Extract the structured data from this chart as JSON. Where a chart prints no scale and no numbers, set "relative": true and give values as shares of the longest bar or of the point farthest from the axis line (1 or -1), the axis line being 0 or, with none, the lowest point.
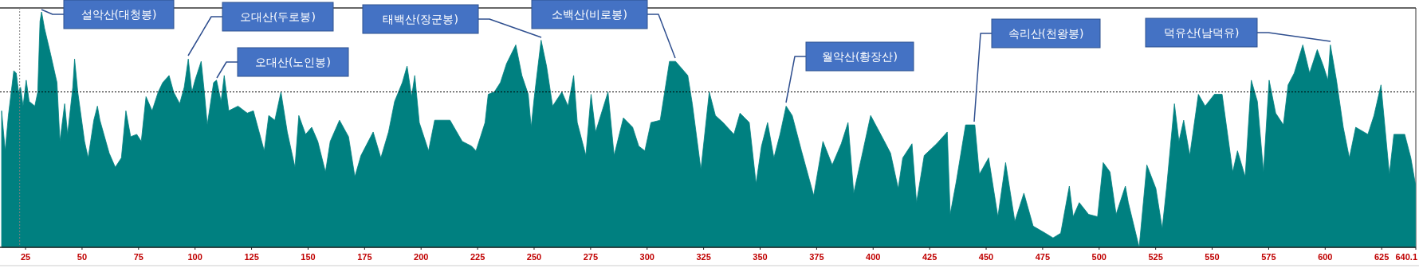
{
  "chart_data": {
    "type": "area",
    "relative": true,
    "x": [
      14.4,
      16.0,
      17.4,
      19.8,
      20.9,
      21.9,
      22.8,
      23.9,
      25.3,
      26.6,
      29.1,
      30.4,
      31.4,
      32.1,
      33.4,
      36.1,
      38.9,
      40.2,
      42.3,
      43.6,
      45.9,
      46.7,
      48.1,
      51.1,
      52.7,
      55.2,
      56.8,
      57.9,
      62.0,
      64.7,
      67.4,
      69.4,
      71.5,
      74.2,
      76.2,
      78.3,
      81.0,
      83.7,
      85.7,
      88.5,
      90.5,
      93.2,
      95.2,
      97.0,
      98.6,
      100.0,
      102.7,
      104.1,
      105.4,
      108.2,
      109.5,
      111.5,
      112.9,
      114.9,
      119.0,
      123.1,
      125.8,
      130.6,
      132.6,
      135.3,
      138.0,
      140.8,
      144.2,
      145.9,
      148.9,
      151.6,
      154.3,
      157.7,
      159.8,
      163.9,
      167.9,
      170.7,
      173.4,
      178.8,
      182.2,
      185.6,
      188.3,
      191.7,
      193.8,
      195.8,
      197.2,
      199.2,
      203.3,
      206.0,
      212.8,
      218.2,
      222.3,
      224.3,
      228.3,
      229.7,
      232.4,
      235.1,
      237.8,
      241.9,
      244.6,
      247.4,
      248.7,
      250.1,
      253.1,
      255.5,
      258.2,
      262.3,
      265.0,
      267.5,
      269.1,
      272.9,
      275.2,
      277.2,
      282.7,
      285.4,
      289.5,
      293.6,
      296.3,
      299.0,
      301.7,
      305.8,
      309.9,
      312.6,
      318.0,
      320.0,
      323.8,
      327.5,
      330.2,
      333.6,
      338.4,
      341.1,
      345.2,
      348.2,
      350.6,
      353.3,
      356.1,
      358.8,
      361.5,
      364.2,
      368.3,
      373.7,
      377.8,
      381.9,
      385.9,
      388.9,
      391.4,
      395.5,
      398.9,
      405.0,
      407.7,
      411.1,
      413.1,
      417.2,
      419.2,
      422.6,
      428.1,
      432.8,
      434.1,
      436.8,
      440.9,
      445.0,
      447.0,
      451.1,
      455.2,
      458.6,
      462.7,
      466.7,
      470.8,
      476.2,
      479.6,
      483.0,
      486.8,
      488.5,
      491.2,
      495.3,
      499.3,
      501.8,
      504.8,
      507.5,
      511.6,
      512.9,
      517.7,
      521.1,
      525.1,
      527.9,
      529.9,
      533.3,
      535.3,
      537.4,
      540.1,
      543.9,
      546.9,
      551.0,
      554.4,
      559.1,
      561.2,
      564.6,
      567.3,
      570.0,
      572.7,
      575.2,
      578.1,
      581.5,
      583.6,
      586.3,
      590.1,
      593.1,
      596.5,
      599.2,
      601.2,
      602.3,
      605.0,
      608.0,
      610.7,
      613.5,
      618.9,
      621.6,
      624.7,
      628.4,
      630.4,
      635.2,
      637.9,
      639.9
    ],
    "series": [
      {
        "color": "#008080",
        "values": [
          0.58,
          0.41,
          0.56,
          0.75,
          0.74,
          0.66,
          0.68,
          0.6,
          0.71,
          0.62,
          0.6,
          0.66,
          0.96,
          1,
          0.93,
          0.82,
          0.7,
          0.45,
          0.61,
          0.48,
          0.68,
          0.8,
          0.66,
          0.45,
          0.38,
          0.54,
          0.6,
          0.54,
          0.4,
          0.34,
          0.38,
          0.58,
          0.47,
          0.48,
          0.45,
          0.64,
          0.58,
          0.66,
          0.7,
          0.73,
          0.66,
          0.61,
          0.68,
          0.8,
          0.66,
          0.71,
          0.79,
          0.66,
          0.52,
          0.7,
          0.71,
          0.62,
          0.73,
          0.58,
          0.6,
          0.57,
          0.58,
          0.41,
          0.56,
          0.54,
          0.66,
          0.49,
          0.34,
          0.56,
          0.48,
          0.51,
          0.45,
          0.32,
          0.45,
          0.54,
          0.47,
          0.3,
          0.39,
          0.49,
          0.38,
          0.49,
          0.62,
          0.7,
          0.77,
          0.64,
          0.73,
          0.53,
          0.41,
          0.54,
          0.54,
          0.45,
          0.43,
          0.41,
          0.53,
          0.65,
          0.66,
          0.7,
          0.78,
          0.86,
          0.73,
          0.65,
          0.51,
          0.64,
          0.88,
          0.77,
          0.6,
          0.66,
          0.6,
          0.73,
          0.53,
          0.39,
          0.65,
          0.49,
          0.66,
          0.39,
          0.55,
          0.51,
          0.43,
          0.41,
          0.53,
          0.54,
          0.79,
          0.79,
          0.73,
          0.61,
          0.33,
          0.66,
          0.56,
          0.53,
          0.48,
          0.57,
          0.53,
          0.27,
          0.43,
          0.53,
          0.38,
          0.48,
          0.6,
          0.56,
          0.41,
          0.22,
          0.45,
          0.35,
          0.44,
          0.53,
          0.23,
          0.41,
          0.56,
          0.45,
          0.4,
          0.25,
          0.38,
          0.44,
          0.19,
          0.39,
          0.44,
          0.49,
          0.14,
          0.28,
          0.52,
          0.52,
          0.31,
          0.38,
          0.13,
          0.36,
          0.11,
          0.23,
          0.09,
          0.06,
          0.04,
          0.06,
          0.26,
          0.13,
          0.19,
          0.14,
          0.13,
          0.36,
          0.32,
          0.14,
          0.26,
          0.19,
          0.0,
          0.35,
          0.25,
          0.08,
          0.26,
          0.61,
          0.45,
          0.54,
          0.39,
          0.65,
          0.6,
          0.65,
          0.65,
          0.32,
          0.41,
          0.3,
          0.71,
          0.62,
          0.32,
          0.71,
          0.57,
          0.52,
          0.69,
          0.74,
          0.86,
          0.74,
          0.84,
          0.77,
          0.71,
          0.86,
          0.71,
          0.51,
          0.38,
          0.51,
          0.48,
          0.56,
          0.69,
          0.31,
          0.48,
          0.48,
          0.38,
          0.27
        ]
      }
    ],
    "xlim": [
      14.4,
      640.1
    ],
    "xticks": [
      25,
      50,
      75,
      100,
      125,
      150,
      175,
      200,
      225,
      250,
      275,
      300,
      325,
      350,
      375,
      400,
      425,
      450,
      475,
      500,
      525,
      550,
      575,
      600,
      625,
      640.1
    ],
    "ref_lines": [
      {
        "axis": "y",
        "value": 0.66,
        "line_style": "dotted",
        "color": "#000000"
      },
      {
        "axis": "x",
        "value": 22.4,
        "line_style": "dotted",
        "color": "#808080"
      }
    ],
    "annotations": [
      "설악산(대청봉)",
      "오대산(두로봉)",
      "오대산(노인봉)",
      "태백산(장군봉)",
      "소백산(비로봉)",
      "월악산(황장산)",
      "속리산(천왕봉)",
      "덕유산(남덕유)"
    ]
  }
}
